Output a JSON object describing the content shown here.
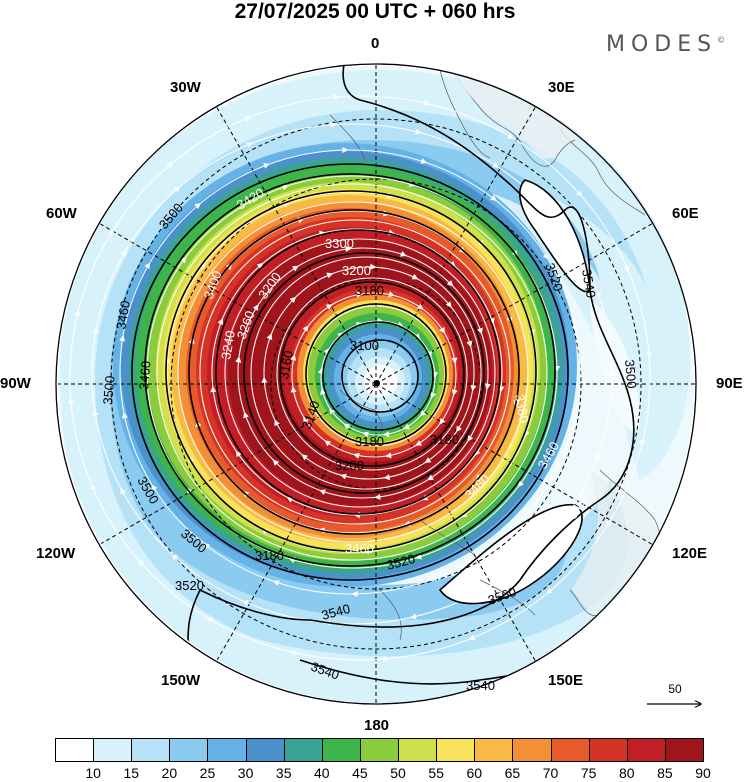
{
  "title": "27/07/2025  00 UTC  + 060 hrs",
  "brand": {
    "name": "MODES",
    "mark": "©"
  },
  "longitude_labels": [
    {
      "id": "lon-0",
      "text": "0"
    },
    {
      "id": "lon-30e",
      "text": "30E"
    },
    {
      "id": "lon-60e",
      "text": "60E"
    },
    {
      "id": "lon-90e",
      "text": "90E"
    },
    {
      "id": "lon-120e",
      "text": "120E"
    },
    {
      "id": "lon-150e",
      "text": "150E"
    },
    {
      "id": "lon-180",
      "text": "180"
    },
    {
      "id": "lon-150w",
      "text": "150W"
    },
    {
      "id": "lon-120w",
      "text": "120W"
    },
    {
      "id": "lon-90w",
      "text": "90W"
    },
    {
      "id": "lon-60w",
      "text": "60W"
    },
    {
      "id": "lon-30w",
      "text": "30W"
    }
  ],
  "contour_labels": [
    "3100",
    "3180",
    "3200",
    "3140",
    "3180",
    "3160",
    "3200",
    "3300",
    "3180",
    "3200",
    "3260",
    "3240",
    "3400",
    "3420",
    "3380",
    "3460",
    "3480",
    "3520",
    "3500",
    "3540",
    "3560",
    "3520",
    "3540",
    "3540",
    "3540",
    "3500",
    "3460",
    "3460",
    "3500",
    "3500",
    "3480",
    "3520",
    "3180",
    "3500",
    "3460"
  ],
  "reference_vector": {
    "label": "50"
  },
  "colorbar": {
    "ticks": [
      "10",
      "15",
      "20",
      "25",
      "30",
      "35",
      "40",
      "45",
      "50",
      "55",
      "60",
      "65",
      "70",
      "75",
      "80",
      "85",
      "90"
    ],
    "colors": [
      "#ffffff",
      "#d8f2fc",
      "#b6e2f8",
      "#8ccbf0",
      "#65b2e6",
      "#4b92cc",
      "#3aa394",
      "#3db54a",
      "#8bcc3c",
      "#cfe14a",
      "#f7e25a",
      "#f8b945",
      "#f39035",
      "#e65a2b",
      "#d63327",
      "#c11f25",
      "#a0151c"
    ]
  },
  "chart_data": {
    "type": "polar-stereographic-map",
    "title": "27/07/2025  00 UTC  + 060 hrs",
    "field_shaded": "wind speed",
    "field_contoured": "geopotential height",
    "shading_levels": [
      10,
      15,
      20,
      25,
      30,
      35,
      40,
      45,
      50,
      55,
      60,
      65,
      70,
      75,
      80,
      85,
      90
    ],
    "contour_values_labeled": [
      3100,
      3140,
      3160,
      3180,
      3200,
      3240,
      3260,
      3300,
      3380,
      3400,
      3420,
      3460,
      3480,
      3500,
      3520,
      3540,
      3560
    ],
    "vortex_minimum_height": 3100,
    "jet_core_speed_min": 90,
    "meridians": [
      "0",
      "30E",
      "60E",
      "90E",
      "120E",
      "150E",
      "180",
      "150W",
      "120W",
      "90W",
      "60W",
      "30W"
    ],
    "reference_arrow": 50
  }
}
